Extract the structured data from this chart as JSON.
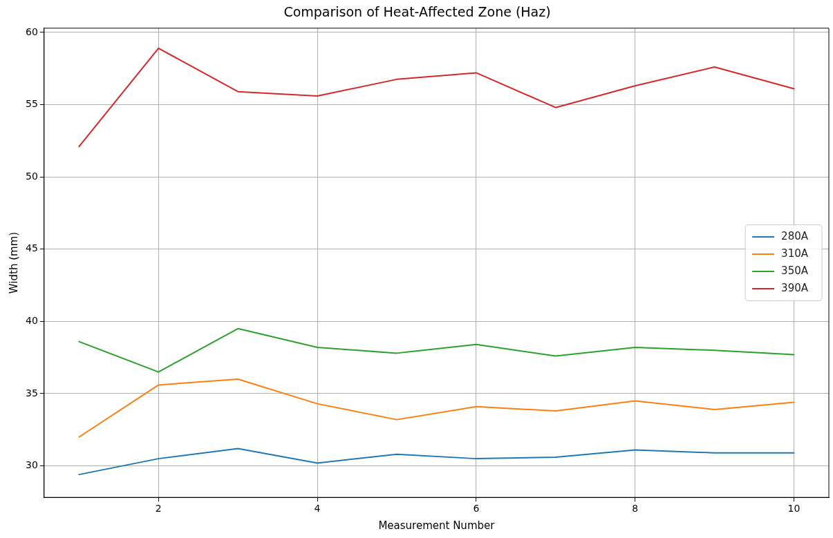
{
  "chart_data": {
    "type": "line",
    "title": "Comparison of Heat-Affected Zone (Haz)",
    "xlabel": "Measurement Number",
    "ylabel": "Width (mm)",
    "x": [
      1,
      2,
      3,
      4,
      5,
      6,
      7,
      8,
      9,
      10
    ],
    "series": [
      {
        "name": "280A",
        "color": "#1f77b4",
        "values": [
          29.4,
          30.5,
          31.2,
          30.2,
          30.8,
          30.5,
          30.6,
          31.1,
          30.9,
          30.9
        ]
      },
      {
        "name": "310A",
        "color": "#ff7f0e",
        "values": [
          32.0,
          35.6,
          36.0,
          34.3,
          33.2,
          34.1,
          33.8,
          34.5,
          33.9,
          34.4
        ]
      },
      {
        "name": "350A",
        "color": "#2ca02c",
        "values": [
          38.6,
          36.5,
          39.5,
          38.2,
          37.8,
          38.4,
          37.6,
          38.2,
          38.0,
          37.7
        ]
      },
      {
        "name": "390A",
        "color": "#d62728",
        "values": [
          52.1,
          58.9,
          55.9,
          55.6,
          56.75,
          57.2,
          54.8,
          56.3,
          57.6,
          56.1
        ]
      }
    ],
    "xlim": [
      0.56,
      10.44
    ],
    "xticks": [
      2,
      4,
      6,
      8,
      10
    ],
    "ylim": [
      27.82,
      60.29
    ],
    "yticks": [
      30,
      35,
      40,
      45,
      50,
      55,
      60
    ],
    "grid": true,
    "legend": "center right",
    "marker": "none",
    "line_style": "solid"
  }
}
